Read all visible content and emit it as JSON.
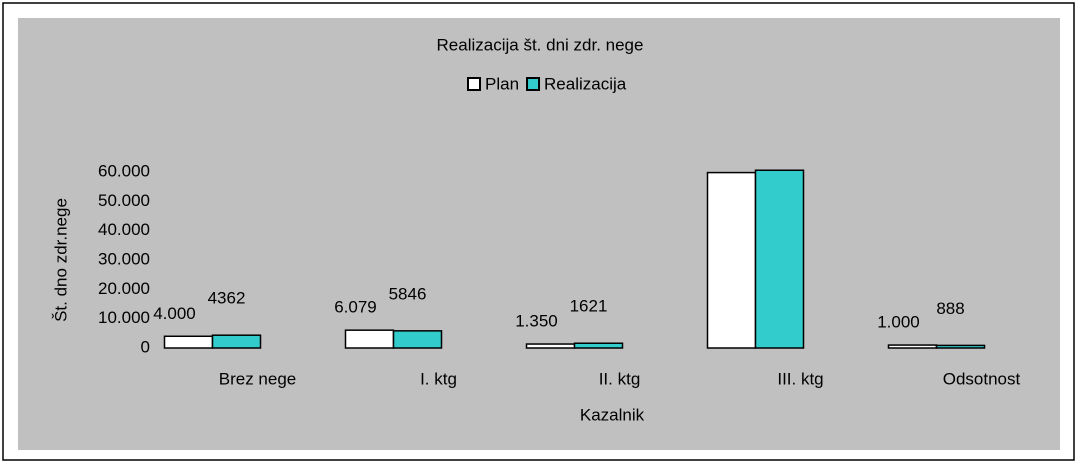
{
  "chart_data": {
    "type": "bar",
    "title": "Realizacija št. dni zdr. nege",
    "x_label": "Kazalnik",
    "y_label": "Št. dno zdr.nege",
    "categories": [
      "Brez nege",
      "I. ktg",
      "II. ktg",
      "III. ktg",
      "Odsotnost"
    ],
    "series": [
      {
        "name": "Plan",
        "color": "#ffffff",
        "values": [
          4000,
          6079,
          1350,
          59800,
          1000
        ],
        "value_labels": [
          "4.000",
          "6.079",
          "1.350",
          null,
          "1.000"
        ]
      },
      {
        "name": "Realizacija",
        "color": "#33cccc",
        "values": [
          4362,
          5846,
          1621,
          60600,
          888
        ],
        "value_labels": [
          "4362",
          "5846",
          "1621",
          null,
          "888"
        ]
      }
    ],
    "ylim": [
      0,
      60000
    ],
    "yticks": [
      0,
      {
        "value": 10000,
        "label": "10.000"
      },
      {
        "value": 20000,
        "label": "20.000"
      },
      {
        "value": 30000,
        "label": "30.000"
      },
      {
        "value": 40000,
        "label": "40.000"
      },
      {
        "value": 50000,
        "label": "50.000"
      },
      {
        "value": 60000,
        "label": "60.000"
      }
    ],
    "legend": "top"
  }
}
